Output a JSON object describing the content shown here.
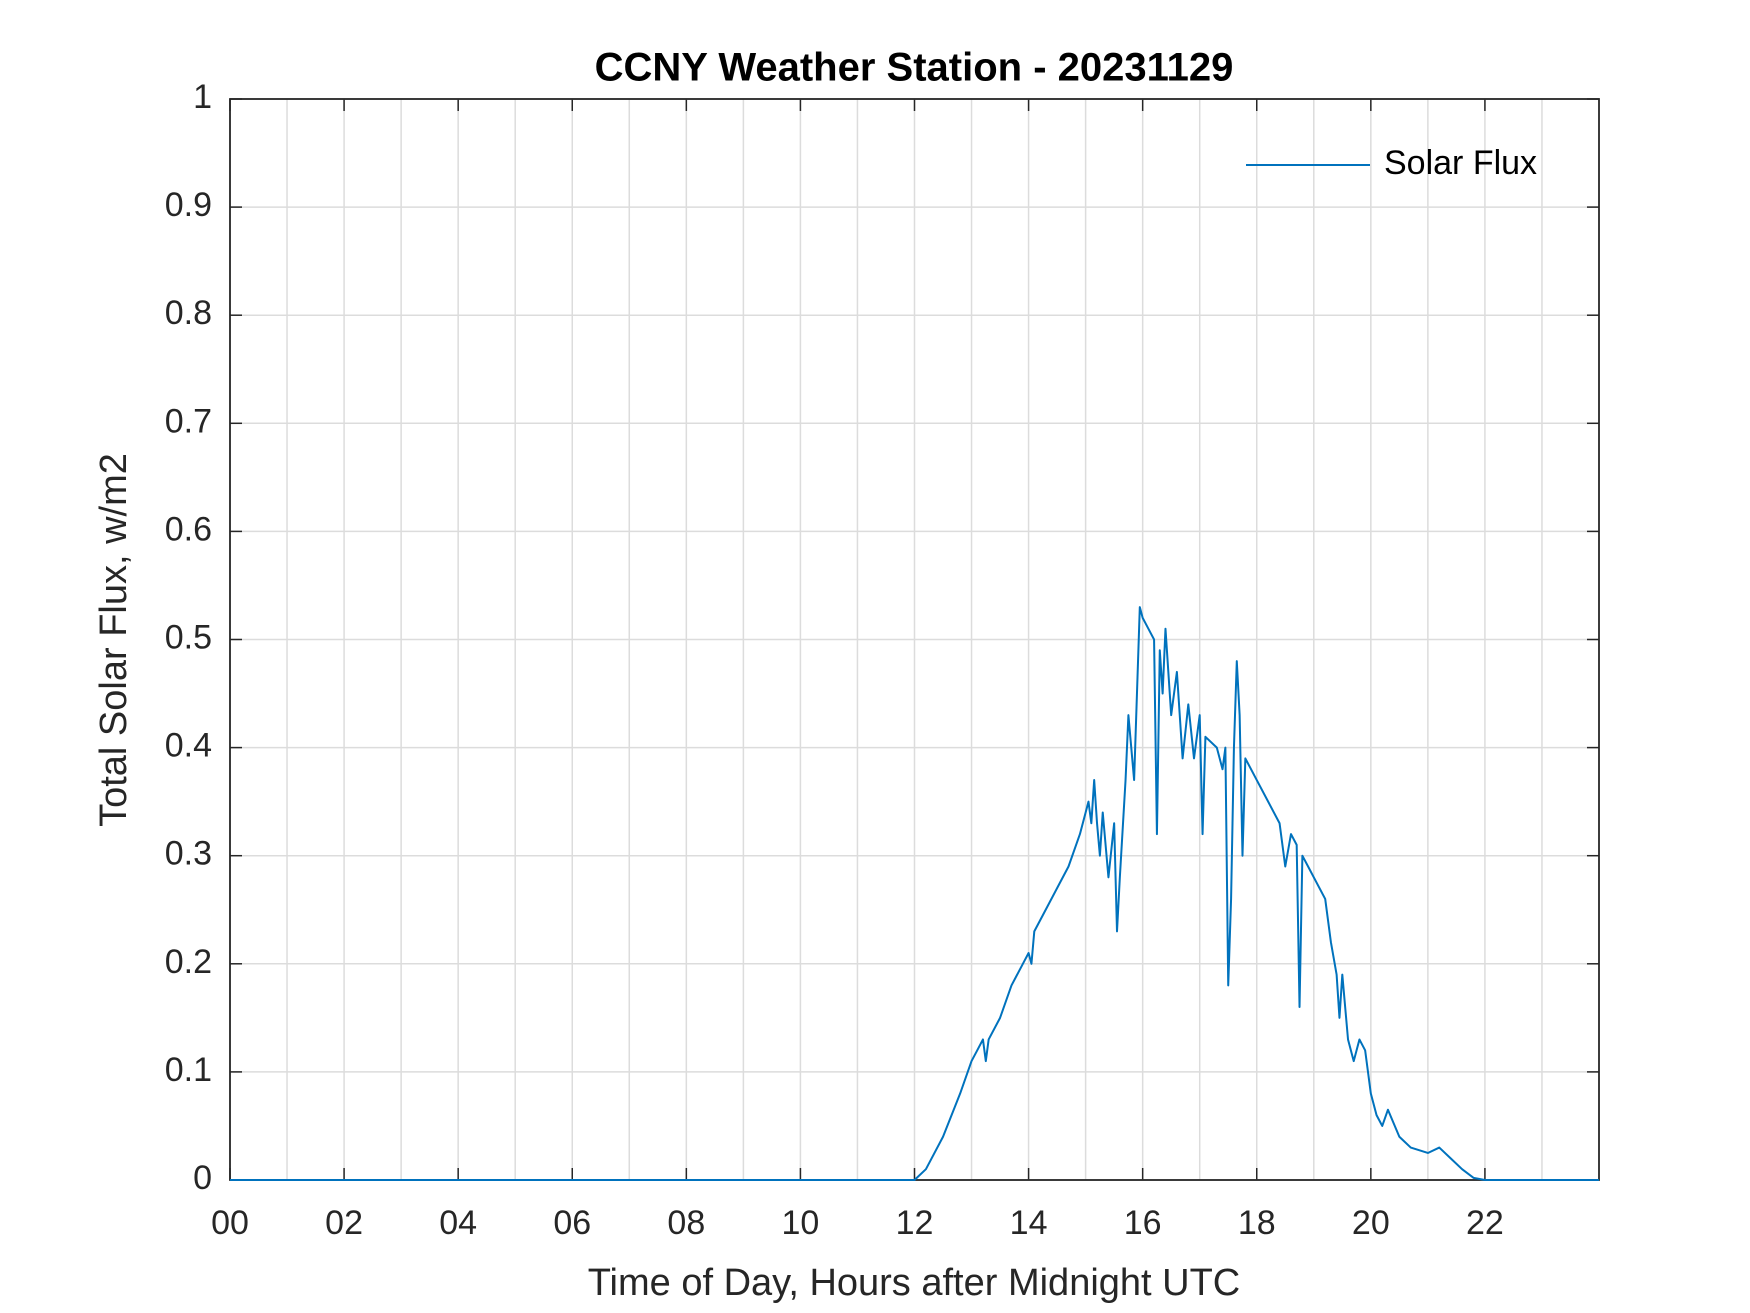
{
  "chart_data": {
    "type": "line",
    "title": "CCNY Weather Station - 20231129",
    "xlabel": "Time of Day, Hours after Midnight UTC",
    "ylabel": "Total Solar Flux, w/m2",
    "xlim": [
      0,
      24
    ],
    "ylim": [
      0,
      1
    ],
    "xticks": [
      {
        "value": 0,
        "label": "00"
      },
      {
        "value": 2,
        "label": "02"
      },
      {
        "value": 4,
        "label": "04"
      },
      {
        "value": 6,
        "label": "06"
      },
      {
        "value": 8,
        "label": "08"
      },
      {
        "value": 10,
        "label": "10"
      },
      12,
      14,
      16,
      18,
      20,
      22
    ],
    "yticks": [
      0,
      0.1,
      0.2,
      0.3,
      0.4,
      0.5,
      0.6,
      0.7,
      0.8,
      0.9,
      1
    ],
    "grid": true,
    "minor_grid": true,
    "legend": "northeast",
    "x": [
      0,
      12.0,
      12.2,
      12.5,
      12.8,
      13.0,
      13.1,
      13.2,
      13.25,
      13.3,
      13.5,
      13.7,
      13.9,
      14.0,
      14.05,
      14.1,
      14.3,
      14.5,
      14.7,
      14.9,
      15.0,
      15.05,
      15.1,
      15.15,
      15.2,
      15.25,
      15.3,
      15.4,
      15.5,
      15.55,
      15.6,
      15.7,
      15.75,
      15.8,
      15.85,
      15.9,
      15.95,
      16.0,
      16.1,
      16.2,
      16.25,
      16.3,
      16.35,
      16.4,
      16.5,
      16.6,
      16.7,
      16.8,
      16.9,
      17.0,
      17.05,
      17.1,
      17.3,
      17.4,
      17.45,
      17.5,
      17.55,
      17.6,
      17.65,
      17.7,
      17.75,
      17.8,
      18.0,
      18.2,
      18.4,
      18.5,
      18.6,
      18.7,
      18.75,
      18.8,
      18.9,
      19.0,
      19.2,
      19.3,
      19.4,
      19.45,
      19.5,
      19.6,
      19.7,
      19.8,
      19.9,
      20.0,
      20.1,
      20.2,
      20.3,
      20.5,
      20.7,
      21.0,
      21.2,
      21.4,
      21.6,
      21.8,
      22.0,
      24
    ],
    "series": [
      {
        "name": "Solar Flux",
        "color": "#0072bd",
        "values": [
          0,
          0,
          0.01,
          0.04,
          0.08,
          0.11,
          0.12,
          0.13,
          0.11,
          0.13,
          0.15,
          0.18,
          0.2,
          0.21,
          0.2,
          0.23,
          0.25,
          0.27,
          0.29,
          0.32,
          0.34,
          0.35,
          0.33,
          0.37,
          0.33,
          0.3,
          0.34,
          0.28,
          0.33,
          0.23,
          0.28,
          0.37,
          0.43,
          0.4,
          0.37,
          0.45,
          0.53,
          0.52,
          0.51,
          0.5,
          0.32,
          0.49,
          0.45,
          0.51,
          0.43,
          0.47,
          0.39,
          0.44,
          0.39,
          0.43,
          0.32,
          0.41,
          0.4,
          0.38,
          0.4,
          0.18,
          0.26,
          0.4,
          0.48,
          0.43,
          0.3,
          0.39,
          0.37,
          0.35,
          0.33,
          0.29,
          0.32,
          0.31,
          0.16,
          0.3,
          0.29,
          0.28,
          0.26,
          0.22,
          0.19,
          0.15,
          0.19,
          0.13,
          0.11,
          0.13,
          0.12,
          0.08,
          0.06,
          0.05,
          0.065,
          0.04,
          0.03,
          0.025,
          0.03,
          0.02,
          0.01,
          0.002,
          0,
          0
        ]
      }
    ]
  }
}
